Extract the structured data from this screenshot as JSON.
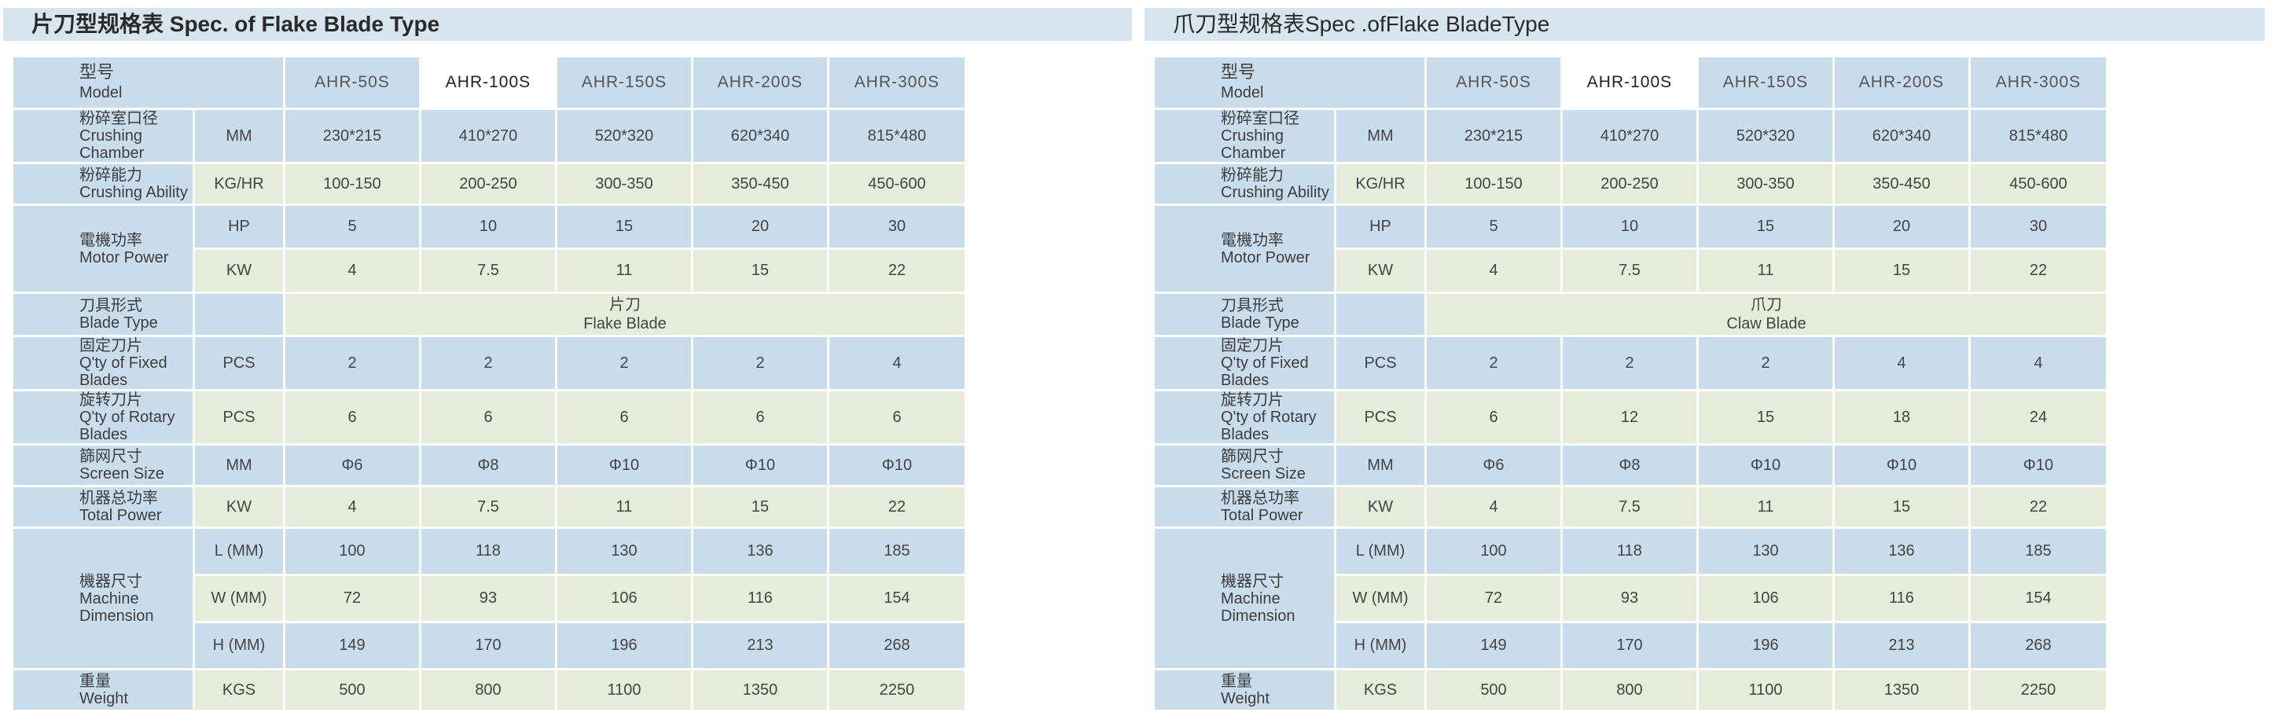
{
  "tables": [
    {
      "title": "片刀型规格表 Spec. of Flake Blade Type",
      "model_label": {
        "zh": "型号",
        "en": "Model"
      },
      "models": [
        "AHR-50S",
        "AHR-100S",
        "AHR-150S",
        "AHR-200S",
        "AHR-300S"
      ],
      "rows": [
        {
          "zh": "粉碎室口径",
          "en": "Crushing Chamber",
          "unit": "MM",
          "values": [
            "230*215",
            "410*270",
            "520*320",
            "620*340",
            "815*480"
          ]
        },
        {
          "zh": "粉碎能力",
          "en": "Crushing  Ability",
          "unit": "KG/HR",
          "values": [
            "100-150",
            "200-250",
            "300-350",
            "350-450",
            "450-600"
          ]
        },
        {
          "zh": "電機功率",
          "en": "Motor Power",
          "subrows": [
            {
              "unit": "HP",
              "values": [
                "5",
                "10",
                "15",
                "20",
                "30"
              ]
            },
            {
              "unit": "KW",
              "values": [
                "4",
                "7.5",
                "11",
                "15",
                "22"
              ]
            }
          ]
        },
        {
          "zh": "刀具形式",
          "en": "Blade Type",
          "unit": "",
          "merged": {
            "zh": "片刀",
            "en": "Flake Blade"
          }
        },
        {
          "zh": "固定刀片",
          "en": "Q'ty of Fixed Blades",
          "unit": "PCS",
          "values": [
            "2",
            "2",
            "2",
            "2",
            "4"
          ]
        },
        {
          "zh": "旋转刀片",
          "en": "Q'ty of Rotary Blades",
          "unit": "PCS",
          "values": [
            "6",
            "6",
            "6",
            "6",
            "6"
          ]
        },
        {
          "zh": "篩网尺寸",
          "en": "Screen Size",
          "unit": "MM",
          "values": [
            "Φ6",
            "Φ8",
            "Φ10",
            "Φ10",
            "Φ10"
          ]
        },
        {
          "zh": "机器总功率",
          "en": "Total Power",
          "unit": "KW",
          "values": [
            "4",
            "7.5",
            "11",
            "15",
            "22"
          ]
        },
        {
          "zh": "機器尺寸",
          "en": "Machine Dimension",
          "subrows": [
            {
              "unit": "L (MM)",
              "values": [
                "100",
                "118",
                "130",
                "136",
                "185"
              ]
            },
            {
              "unit": "W (MM)",
              "values": [
                "72",
                "93",
                "106",
                "116",
                "154"
              ]
            },
            {
              "unit": "H (MM)",
              "values": [
                "149",
                "170",
                "196",
                "213",
                "268"
              ]
            }
          ]
        },
        {
          "zh": "重量",
          "en": "Weight",
          "unit": "KGS",
          "values": [
            "500",
            "800",
            "1100",
            "1350",
            "2250"
          ]
        }
      ]
    },
    {
      "title": "爪刀型规格表Spec .ofFlake  BladeType",
      "model_label": {
        "zh": "型号",
        "en": "Model"
      },
      "models": [
        "AHR-50S",
        "AHR-100S",
        "AHR-150S",
        "AHR-200S",
        "AHR-300S"
      ],
      "rows": [
        {
          "zh": "粉碎室口径",
          "en": "Crushing Chamber",
          "unit": "MM",
          "values": [
            "230*215",
            "410*270",
            "520*320",
            "620*340",
            "815*480"
          ]
        },
        {
          "zh": "粉碎能力",
          "en": "Crushing  Ability",
          "unit": "KG/HR",
          "values": [
            "100-150",
            "200-250",
            "300-350",
            "350-450",
            "450-600"
          ]
        },
        {
          "zh": "電機功率",
          "en": "Motor Power",
          "subrows": [
            {
              "unit": "HP",
              "values": [
                "5",
                "10",
                "15",
                "20",
                "30"
              ]
            },
            {
              "unit": "KW",
              "values": [
                "4",
                "7.5",
                "11",
                "15",
                "22"
              ]
            }
          ]
        },
        {
          "zh": "刀具形式",
          "en": "Blade Type",
          "unit": "",
          "merged": {
            "zh": "爪刀",
            "en": "Claw Blade"
          }
        },
        {
          "zh": "固定刀片",
          "en": "Q'ty of Fixed Blades",
          "unit": "PCS",
          "values": [
            "2",
            "2",
            "2",
            "4",
            "4"
          ]
        },
        {
          "zh": "旋转刀片",
          "en": "Q'ty of Rotary Blades",
          "unit": "PCS",
          "values": [
            "6",
            "12",
            "15",
            "18",
            "24"
          ]
        },
        {
          "zh": "篩网尺寸",
          "en": "Screen Size",
          "unit": "MM",
          "values": [
            "Φ6",
            "Φ8",
            "Φ10",
            "Φ10",
            "Φ10"
          ]
        },
        {
          "zh": "机器总功率",
          "en": "Total Power",
          "unit": "KW",
          "values": [
            "4",
            "7.5",
            "11",
            "15",
            "22"
          ]
        },
        {
          "zh": "機器尺寸",
          "en": "Machine Dimension",
          "subrows": [
            {
              "unit": "L (MM)",
              "values": [
                "100",
                "118",
                "130",
                "136",
                "185"
              ]
            },
            {
              "unit": "W (MM)",
              "values": [
                "72",
                "93",
                "106",
                "116",
                "154"
              ]
            },
            {
              "unit": "H (MM)",
              "values": [
                "149",
                "170",
                "196",
                "213",
                "268"
              ]
            }
          ]
        },
        {
          "zh": "重量",
          "en": "Weight",
          "unit": "KGS",
          "values": [
            "500",
            "800",
            "1100",
            "1350",
            "2250"
          ]
        }
      ]
    }
  ],
  "colors": {
    "title_bar": "#d7e5ef",
    "cell_blue": "#c9dcec",
    "cell_green": "#e6ecd9",
    "header_white": "#ffffff"
  }
}
